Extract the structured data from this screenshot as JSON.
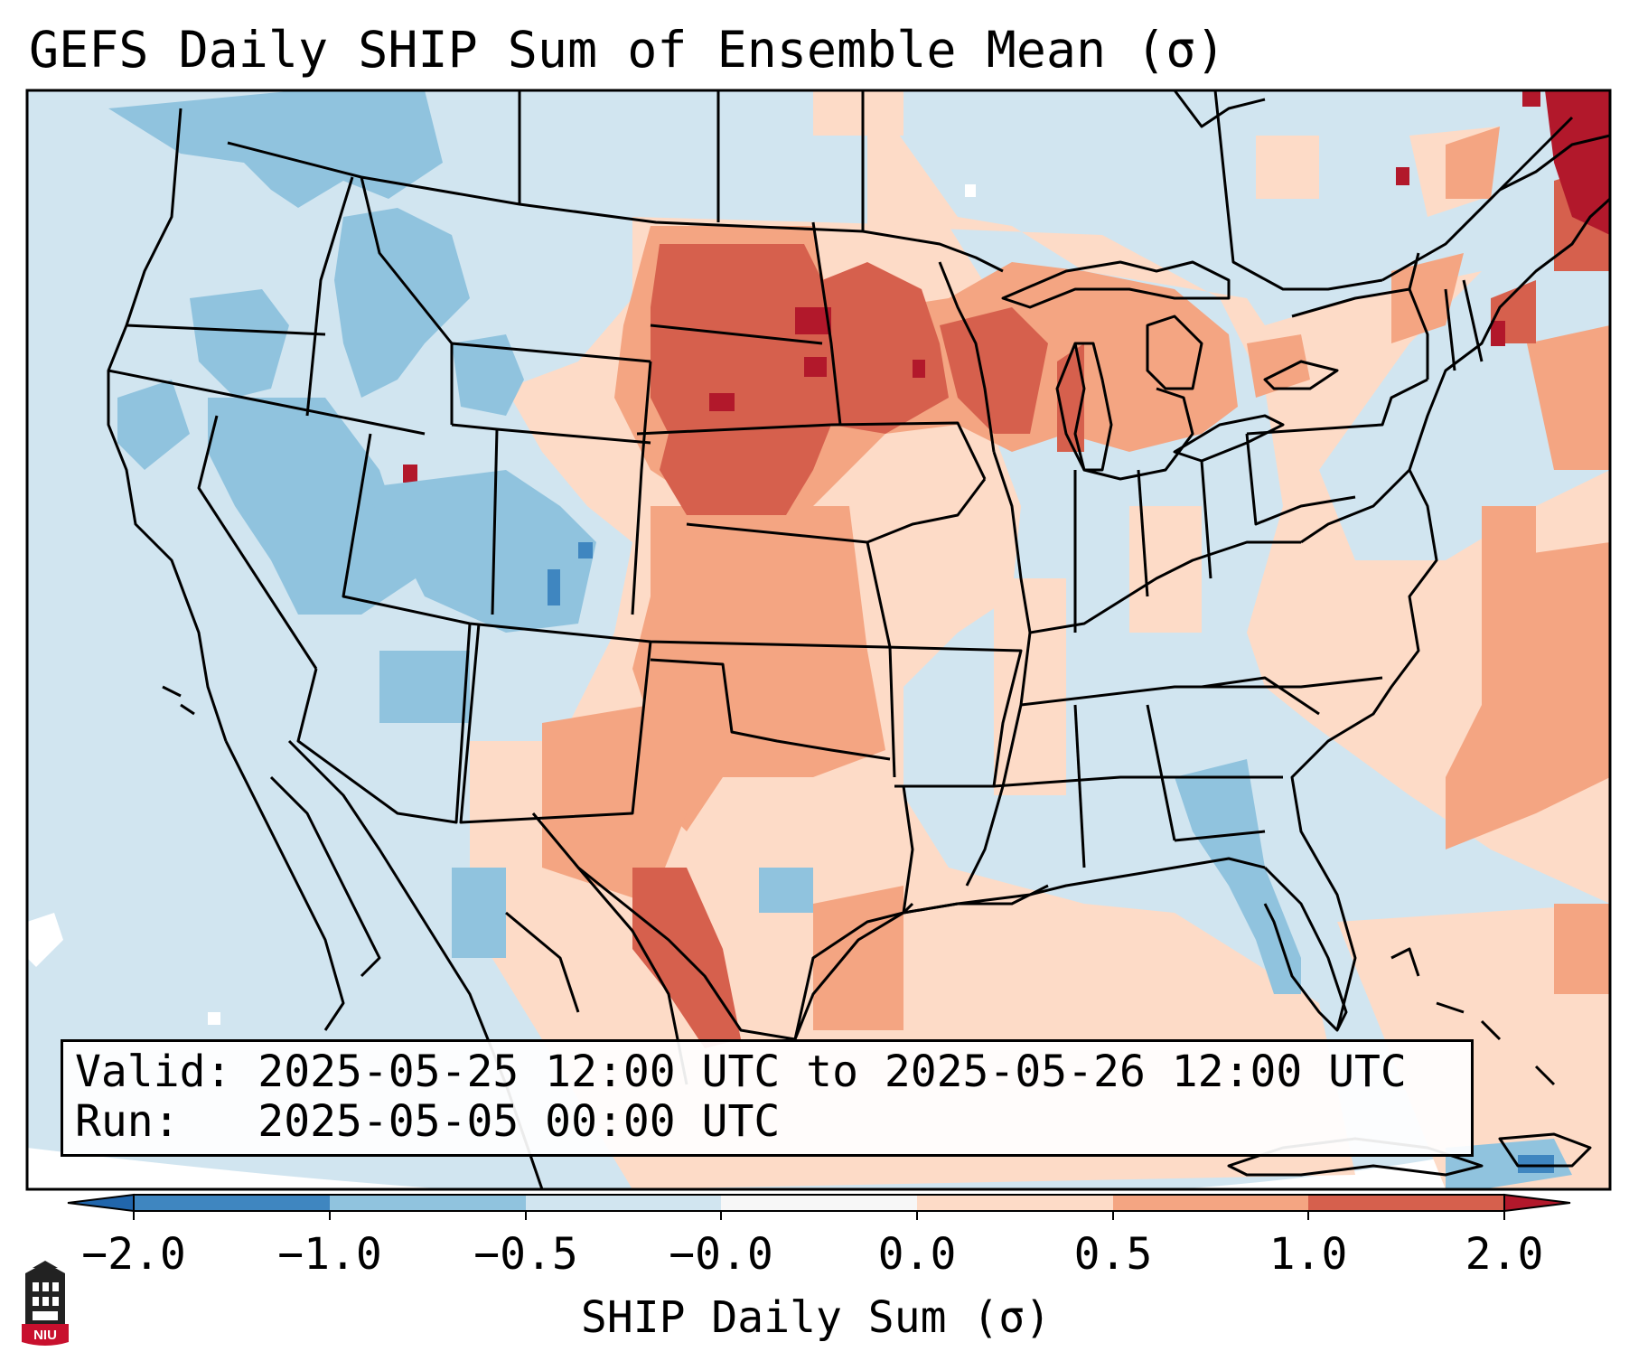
{
  "title": "GEFS Daily SHIP Sum of Ensemble Mean (σ)",
  "info": {
    "valid_label": "Valid:",
    "valid_text": "2025-05-25 12:00 UTC to 2025-05-26 12:00 UTC",
    "run_label": "Run:",
    "run_text": "2025-05-05 00:00 UTC"
  },
  "colorbar": {
    "label": "SHIP Daily Sum (σ)",
    "ticks": [
      "−2.0",
      "−1.0",
      "−0.5",
      "−0.0",
      "0.0",
      "0.5",
      "1.0",
      "2.0"
    ],
    "colors": [
      "#3f86c0",
      "#90c3de",
      "#d1e5f0",
      "#f7f7f7",
      "#fddbc7",
      "#f4a582",
      "#d6604d",
      "#b2182b"
    ],
    "extend": "both"
  },
  "map_regions": {
    "background": "#d1e5f0",
    "positive_light": "#fddbc7",
    "positive_medium": "#f4a582",
    "positive_strong": "#d6604d",
    "positive_extreme": "#b2182b",
    "negative_light": "#90c3de",
    "negative_strong": "#3f86c0"
  },
  "logo": {
    "icon": "niu-logo-icon",
    "text": "NIU"
  }
}
